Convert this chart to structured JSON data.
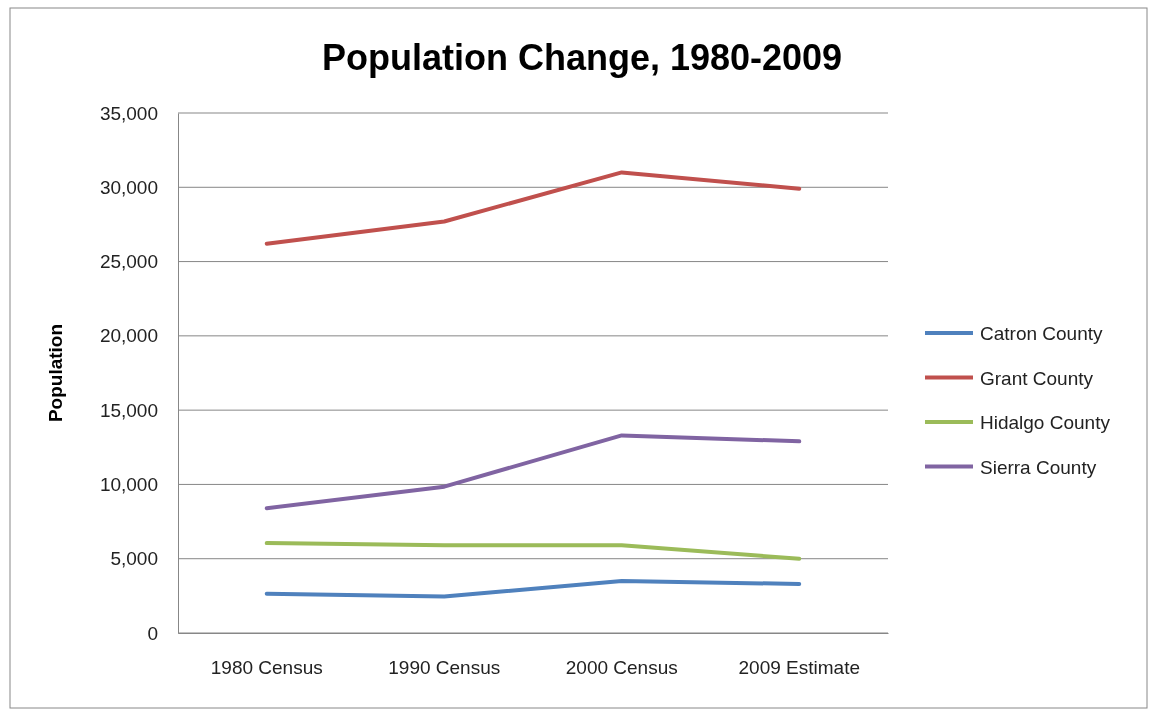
{
  "chart_data": {
    "type": "line",
    "title": "Population Change, 1980-2009",
    "ylabel": "Population",
    "categories": [
      "1980 Census",
      "1990 Census",
      "2000 Census",
      "2009 Estimate"
    ],
    "series": [
      {
        "name": "Catron County",
        "color": "#4f81bd",
        "values": [
          2650,
          2450,
          3500,
          3300
        ]
      },
      {
        "name": "Grant County",
        "color": "#c0504d",
        "values": [
          26200,
          27700,
          31000,
          29900
        ]
      },
      {
        "name": "Hidalgo County",
        "color": "#9bbb59",
        "values": [
          6050,
          5900,
          5900,
          5000
        ]
      },
      {
        "name": "Sierra County",
        "color": "#8064a2",
        "values": [
          8400,
          9850,
          13300,
          12900
        ]
      }
    ],
    "ylim": [
      0,
      35000
    ],
    "yticks": [
      {
        "value": 0,
        "label": "0"
      },
      {
        "value": 5000,
        "label": "5,000"
      },
      {
        "value": 10000,
        "label": "10,000"
      },
      {
        "value": 15000,
        "label": "15,000"
      },
      {
        "value": 20000,
        "label": "20,000"
      },
      {
        "value": 25000,
        "label": "25,000"
      },
      {
        "value": 30000,
        "label": "30,000"
      },
      {
        "value": 35000,
        "label": "35,000"
      }
    ],
    "grid": "y",
    "legend": "right",
    "marker": "none",
    "line_style": "solid"
  }
}
